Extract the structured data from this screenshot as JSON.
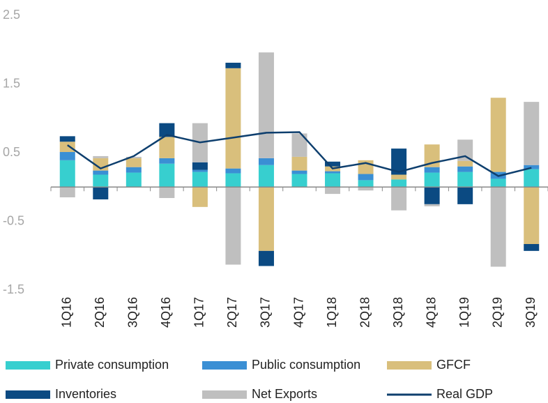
{
  "chart_data": {
    "type": "bar",
    "stacked": true,
    "categories": [
      "1Q16",
      "2Q16",
      "3Q16",
      "4Q16",
      "1Q17",
      "2Q17",
      "3Q17",
      "4Q17",
      "1Q18",
      "2Q18",
      "3Q18",
      "4Q18",
      "1Q19",
      "2Q19",
      "3Q19"
    ],
    "series": [
      {
        "name": "Private consumption",
        "color": "#37cfcf",
        "values": [
          0.39,
          0.18,
          0.21,
          0.34,
          0.22,
          0.2,
          0.32,
          0.19,
          0.2,
          0.1,
          0.11,
          0.21,
          0.22,
          0.12,
          0.26
        ]
      },
      {
        "name": "Public consumption",
        "color": "#3a8fd4",
        "values": [
          0.12,
          0.06,
          0.08,
          0.08,
          0.03,
          0.07,
          0.1,
          0.05,
          0.03,
          0.09,
          0,
          0.08,
          0.08,
          0.1,
          0.06
        ]
      },
      {
        "name": "GFCF",
        "color": "#d9bf7c",
        "values": [
          0.15,
          0.18,
          0.13,
          0.31,
          -0.29,
          1.46,
          -0.93,
          0.2,
          0.07,
          0.2,
          0.07,
          0.33,
          0.08,
          1.08,
          -0.83
        ]
      },
      {
        "name": "Inventories",
        "color": "#0b4a82",
        "values": [
          0.08,
          -0.18,
          0,
          0.2,
          0.11,
          0.08,
          -0.22,
          0,
          0.07,
          0,
          0.38,
          -0.25,
          -0.25,
          0,
          -0.1
        ]
      },
      {
        "name": "Net Exports",
        "color": "#bfbfbf",
        "values": [
          -0.15,
          0.03,
          0.02,
          -0.16,
          0.57,
          -1.13,
          1.54,
          0.34,
          -0.1,
          -0.05,
          -0.34,
          -0.03,
          0.31,
          -1.16,
          0.92
        ]
      },
      {
        "name": "Real GDP",
        "color": "#0e3f6e",
        "type": "line",
        "values": [
          0.61,
          0.27,
          0.45,
          0.76,
          0.65,
          0.72,
          0.79,
          0.8,
          0.27,
          0.35,
          0.22,
          0.35,
          0.45,
          0.16,
          0.28
        ]
      }
    ],
    "ylim": [
      -1.5,
      2.5
    ],
    "yticks": [
      -1.5,
      -0.5,
      0.5,
      1.5,
      2.5
    ],
    "grid": false
  }
}
